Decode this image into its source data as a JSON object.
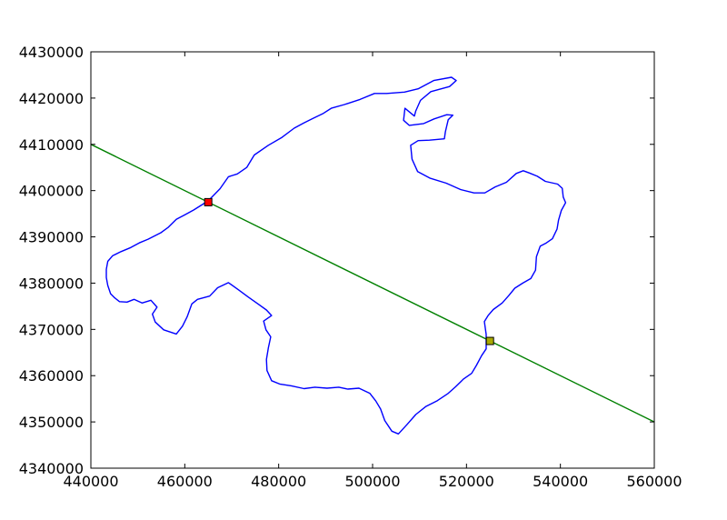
{
  "chart_data": {
    "type": "line",
    "title": "",
    "xlabel": "",
    "ylabel": "",
    "xlim": [
      440000,
      560000
    ],
    "ylim": [
      4340000,
      4430000
    ],
    "xticks": [
      440000,
      460000,
      480000,
      500000,
      520000,
      540000,
      560000
    ],
    "yticks": [
      4340000,
      4350000,
      4360000,
      4370000,
      4380000,
      4390000,
      4400000,
      4410000,
      4420000,
      4430000
    ],
    "xtick_labels": [
      "440000",
      "460000",
      "480000",
      "500000",
      "520000",
      "540000",
      "560000"
    ],
    "ytick_labels": [
      "4340000",
      "4350000",
      "4360000",
      "4370000",
      "4380000",
      "4390000",
      "4400000",
      "4410000",
      "4420000",
      "4430000"
    ],
    "grid": false,
    "series": [
      {
        "kind": "outline",
        "color": "#0000ff",
        "points": [
          [
            465000,
            4397800
          ],
          [
            467500,
            4400400
          ],
          [
            469300,
            4403000
          ],
          [
            471200,
            4403600
          ],
          [
            473200,
            4405000
          ],
          [
            474800,
            4407700
          ],
          [
            477800,
            4409800
          ],
          [
            480700,
            4411500
          ],
          [
            483300,
            4413500
          ],
          [
            485300,
            4414600
          ],
          [
            487300,
            4415600
          ],
          [
            489500,
            4416700
          ],
          [
            491200,
            4417800
          ],
          [
            494000,
            4418600
          ],
          [
            497300,
            4419700
          ],
          [
            500400,
            4421000
          ],
          [
            503000,
            4421000
          ],
          [
            506800,
            4421300
          ],
          [
            509700,
            4422000
          ],
          [
            513000,
            4423800
          ],
          [
            516800,
            4424500
          ],
          [
            517800,
            4423800
          ],
          [
            516400,
            4422500
          ],
          [
            512400,
            4421400
          ],
          [
            510200,
            4419500
          ],
          [
            509200,
            4417200
          ],
          [
            508900,
            4416100
          ],
          [
            506900,
            4417800
          ],
          [
            506600,
            4415200
          ],
          [
            507800,
            4414100
          ],
          [
            510900,
            4414500
          ],
          [
            513100,
            4415500
          ],
          [
            515800,
            4416400
          ],
          [
            517100,
            4416300
          ],
          [
            516100,
            4415300
          ],
          [
            515500,
            4412700
          ],
          [
            515300,
            4411200
          ],
          [
            512100,
            4410900
          ],
          [
            509700,
            4410800
          ],
          [
            508100,
            4409800
          ],
          [
            508400,
            4406800
          ],
          [
            509600,
            4404100
          ],
          [
            512200,
            4402700
          ],
          [
            515700,
            4401600
          ],
          [
            518800,
            4400200
          ],
          [
            521600,
            4399500
          ],
          [
            523900,
            4399500
          ],
          [
            526100,
            4400800
          ],
          [
            528500,
            4401800
          ],
          [
            530600,
            4403700
          ],
          [
            532100,
            4404300
          ],
          [
            533400,
            4403800
          ],
          [
            535100,
            4403100
          ],
          [
            536800,
            4402000
          ],
          [
            539400,
            4401400
          ],
          [
            540400,
            4400500
          ],
          [
            540600,
            4398600
          ],
          [
            541100,
            4397400
          ],
          [
            540200,
            4395700
          ],
          [
            539600,
            4393600
          ],
          [
            539300,
            4391700
          ],
          [
            538300,
            4389600
          ],
          [
            537000,
            4388700
          ],
          [
            535700,
            4388000
          ],
          [
            534900,
            4385700
          ],
          [
            534700,
            4382800
          ],
          [
            533700,
            4381000
          ],
          [
            532000,
            4380000
          ],
          [
            530300,
            4378900
          ],
          [
            529000,
            4377300
          ],
          [
            527600,
            4375700
          ],
          [
            525700,
            4374300
          ],
          [
            524600,
            4373000
          ],
          [
            523800,
            4371700
          ],
          [
            524200,
            4368900
          ],
          [
            524200,
            4365800
          ],
          [
            523200,
            4364300
          ],
          [
            522100,
            4362200
          ],
          [
            521100,
            4360500
          ],
          [
            519400,
            4359300
          ],
          [
            517700,
            4357600
          ],
          [
            516000,
            4356100
          ],
          [
            513800,
            4354600
          ],
          [
            511300,
            4353300
          ],
          [
            509200,
            4351600
          ],
          [
            507300,
            4349400
          ],
          [
            505500,
            4347400
          ],
          [
            504100,
            4348000
          ],
          [
            502600,
            4350300
          ],
          [
            501700,
            4352800
          ],
          [
            500700,
            4354500
          ],
          [
            499400,
            4356200
          ],
          [
            497100,
            4357300
          ],
          [
            494700,
            4357100
          ],
          [
            492800,
            4357500
          ],
          [
            490300,
            4357300
          ],
          [
            487700,
            4357500
          ],
          [
            485400,
            4357200
          ],
          [
            482700,
            4357800
          ],
          [
            480200,
            4358200
          ],
          [
            478500,
            4358900
          ],
          [
            477500,
            4361100
          ],
          [
            477400,
            4363500
          ],
          [
            477800,
            4366000
          ],
          [
            478300,
            4368400
          ],
          [
            477300,
            4369900
          ],
          [
            476800,
            4371800
          ],
          [
            478500,
            4373000
          ],
          [
            477400,
            4374200
          ],
          [
            475600,
            4375500
          ],
          [
            473500,
            4377000
          ],
          [
            471500,
            4378500
          ],
          [
            469300,
            4380100
          ],
          [
            467000,
            4379000
          ],
          [
            465300,
            4377200
          ],
          [
            462700,
            4376500
          ],
          [
            461500,
            4375500
          ],
          [
            460500,
            4372700
          ],
          [
            459500,
            4370700
          ],
          [
            458200,
            4369000
          ],
          [
            455500,
            4369900
          ],
          [
            453700,
            4371600
          ],
          [
            453100,
            4373300
          ],
          [
            454100,
            4374800
          ],
          [
            452800,
            4376300
          ],
          [
            450900,
            4375700
          ],
          [
            449200,
            4376500
          ],
          [
            447700,
            4375900
          ],
          [
            446100,
            4376000
          ],
          [
            445100,
            4376800
          ],
          [
            444200,
            4377700
          ],
          [
            443600,
            4379500
          ],
          [
            443300,
            4381200
          ],
          [
            443300,
            4383000
          ],
          [
            443600,
            4384700
          ],
          [
            444600,
            4385900
          ],
          [
            446400,
            4386800
          ],
          [
            448500,
            4387700
          ],
          [
            450300,
            4388700
          ],
          [
            452200,
            4389500
          ],
          [
            454900,
            4390900
          ],
          [
            456500,
            4392100
          ],
          [
            458200,
            4393800
          ],
          [
            459900,
            4394700
          ],
          [
            461900,
            4395800
          ],
          [
            465000,
            4397800
          ]
        ]
      },
      {
        "kind": "line",
        "color": "#008000",
        "points": [
          [
            440000,
            4410000
          ],
          [
            560000,
            4350000
          ]
        ]
      }
    ],
    "markers": [
      {
        "x": 465000,
        "y": 4397500,
        "shape": "square",
        "color": "#ff0000"
      },
      {
        "x": 525000,
        "y": 4367500,
        "shape": "square",
        "color": "#aaaa00"
      }
    ]
  }
}
